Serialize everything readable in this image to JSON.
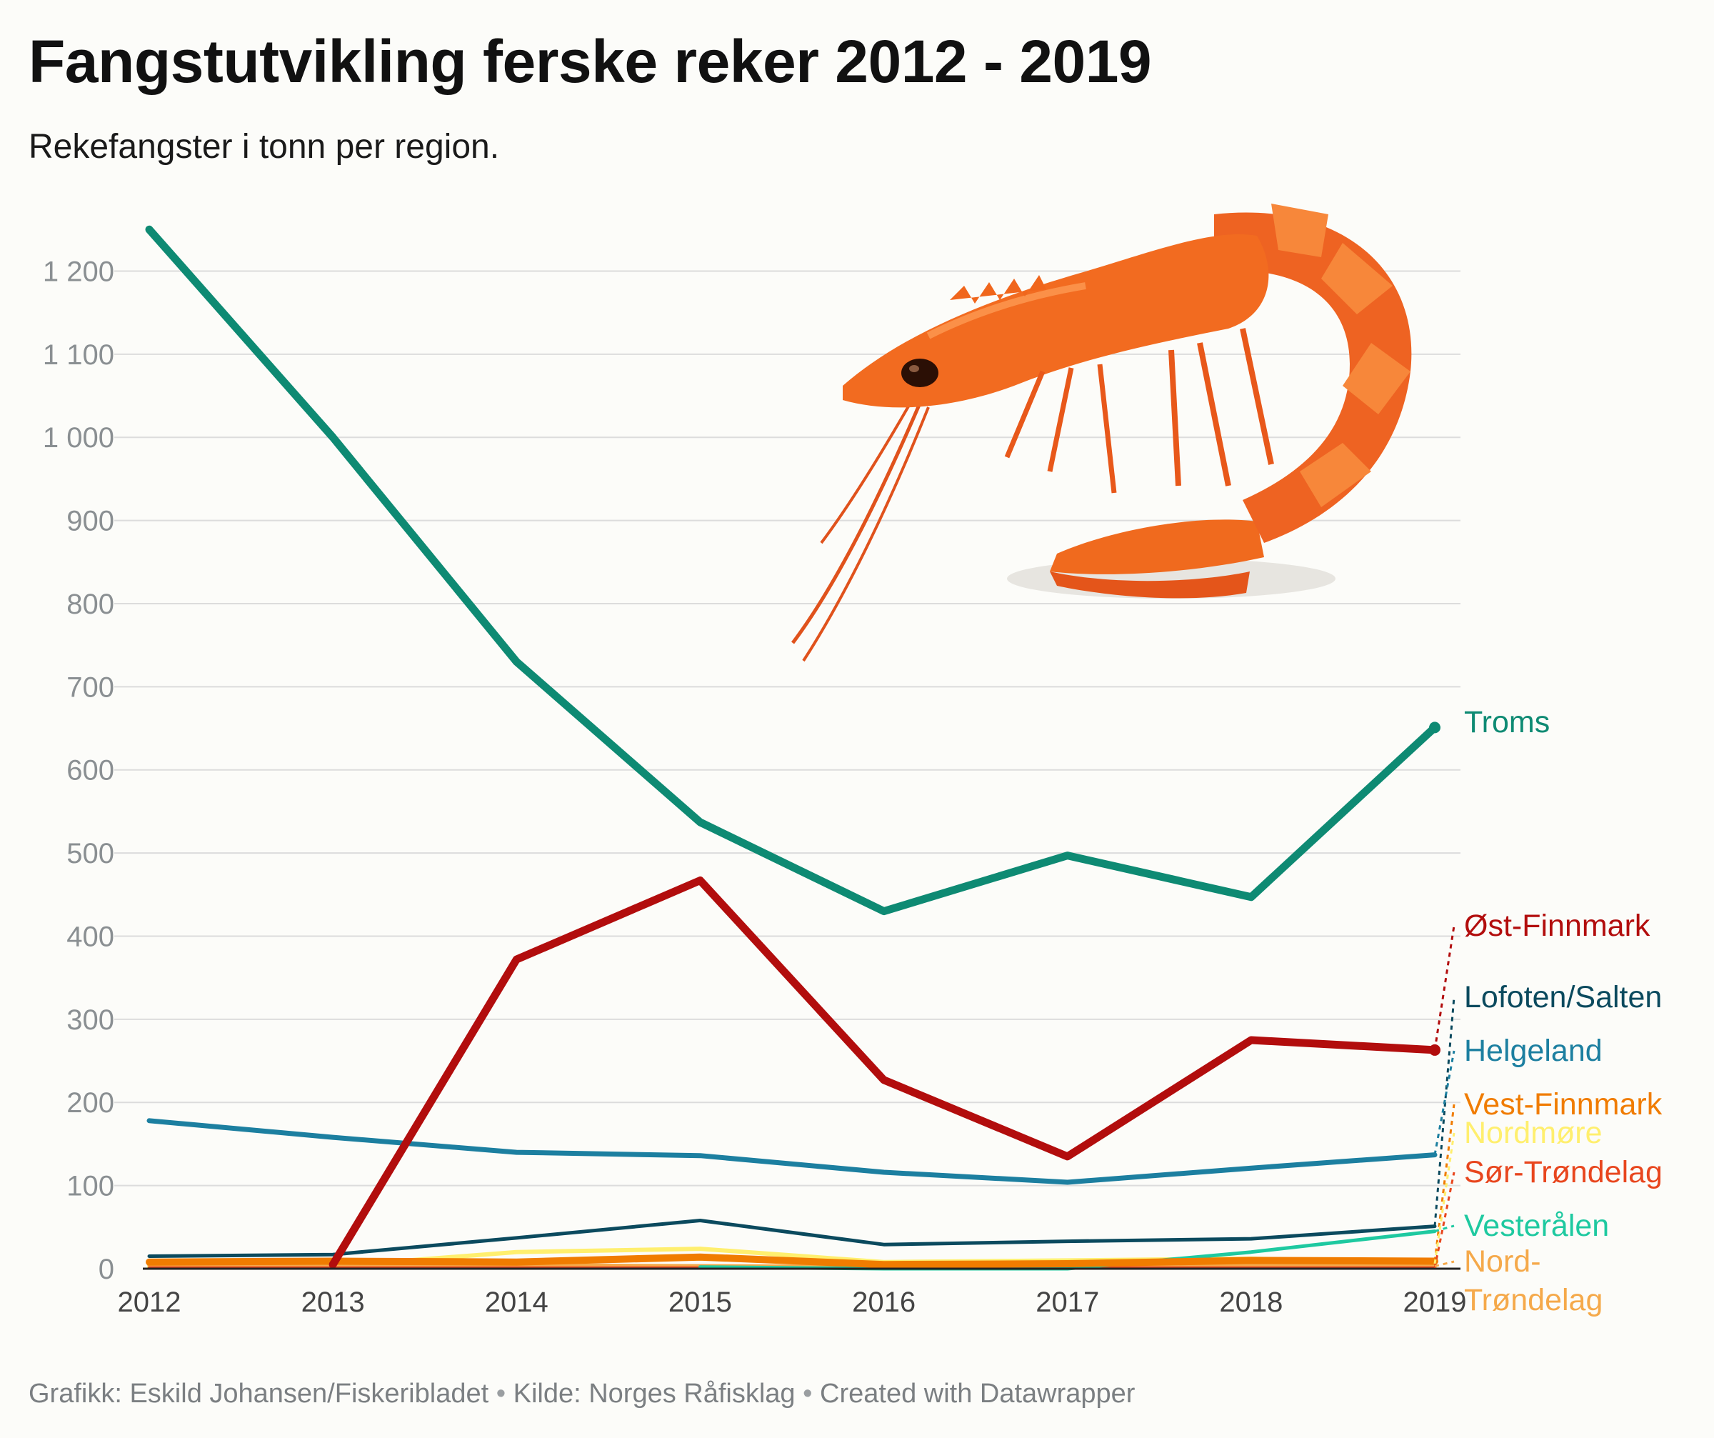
{
  "title": "Fangstutvikling ferske reker 2012 - 2019",
  "subtitle": "Rekefangster i tonn per region.",
  "footer": {
    "graphics": "Grafikk: Eskild Johansen/Fiskeribladet",
    "source": "Kilde: Norges Råfisklag",
    "created": "Created with Datawrapper",
    "separator": "•"
  },
  "chart_data": {
    "type": "line",
    "title": "Fangstutvikling ferske reker 2012 - 2019",
    "subtitle": "Rekefangster i tonn per region.",
    "xlabel": "",
    "ylabel": "",
    "x": [
      2012,
      2013,
      2014,
      2015,
      2016,
      2017,
      2018,
      2019
    ],
    "x_tick_labels": [
      "2012",
      "2013",
      "2014",
      "2015",
      "2016",
      "2017",
      "2018",
      "2019"
    ],
    "ylim": [
      0,
      1200
    ],
    "y_ticks": [
      0,
      100,
      200,
      300,
      400,
      500,
      600,
      700,
      800,
      900,
      1000,
      1100,
      1200
    ],
    "y_tick_labels": [
      "0",
      "100",
      "200",
      "300",
      "400",
      "500",
      "600",
      "700",
      "800",
      "900",
      "1 000",
      "1 100",
      "1 200"
    ],
    "grid": "horizontal",
    "legend": "direct labels at right end of lines",
    "series": [
      {
        "name": "Troms",
        "color": "#0e8a73",
        "values": [
          1250,
          1000,
          730,
          537,
          430,
          497,
          447,
          651
        ]
      },
      {
        "name": "Øst-Finnmark",
        "color": "#b20d0d",
        "values": [
          null,
          5,
          372,
          467,
          227,
          135,
          275,
          263
        ]
      },
      {
        "name": "Lofoten/Salten",
        "color": "#0b4a5e",
        "values": [
          15,
          17,
          37,
          58,
          29,
          33,
          36,
          51
        ]
      },
      {
        "name": "Helgeland",
        "color": "#1c7fa0",
        "values": [
          178,
          158,
          140,
          136,
          116,
          104,
          121,
          137
        ]
      },
      {
        "name": "Vest-Finnmark",
        "color": "#f07c00",
        "values": [
          8,
          9,
          8,
          14,
          5,
          6,
          10,
          9
        ]
      },
      {
        "name": "Nordmøre",
        "color": "#ffef6e",
        "values": [
          2,
          3,
          20,
          24,
          8,
          10,
          12,
          6
        ]
      },
      {
        "name": "Sør-Trøndelag",
        "color": "#e8461e",
        "values": [
          1,
          1,
          1,
          1,
          1,
          1,
          1,
          1
        ]
      },
      {
        "name": "Vesterålen",
        "color": "#1ec9a0",
        "values": [
          null,
          null,
          null,
          2,
          0,
          0,
          20,
          45
        ]
      },
      {
        "name": "Nord-Trøndelag",
        "color": "#f5a94a",
        "values": [
          5,
          4,
          4,
          3,
          2,
          3,
          3,
          3
        ]
      }
    ]
  }
}
